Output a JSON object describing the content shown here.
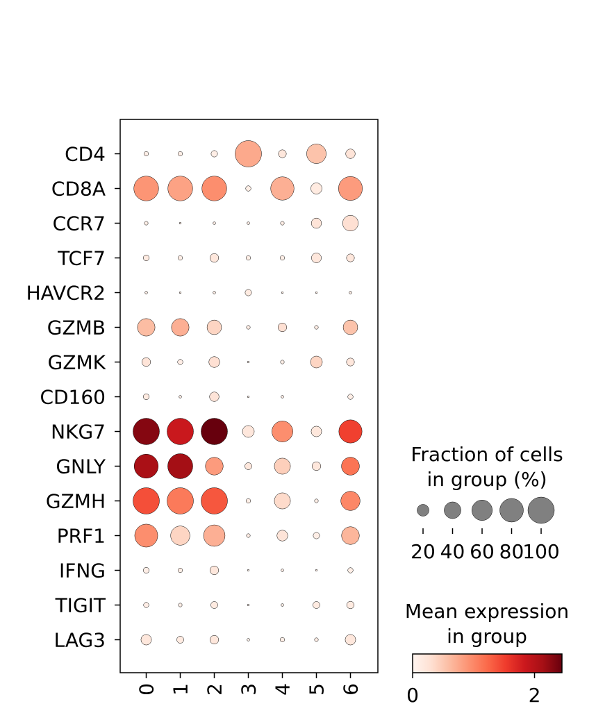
{
  "chart_data": {
    "type": "dotplot",
    "genes": [
      "CD4",
      "CD8A",
      "CCR7",
      "TCF7",
      "HAVCR2",
      "GZMB",
      "GZMK",
      "CD160",
      "NKG7",
      "GNLY",
      "GZMH",
      "PRF1",
      "IFNG",
      "TIGIT",
      "LAG3"
    ],
    "groups": [
      "0",
      "1",
      "2",
      "3",
      "4",
      "5",
      "6"
    ],
    "fraction_pct": [
      [
        3,
        3,
        6,
        100,
        9,
        55,
        13
      ],
      [
        88,
        88,
        88,
        4,
        78,
        18,
        82
      ],
      [
        2,
        0.5,
        1,
        1,
        2,
        15,
        35
      ],
      [
        5,
        3,
        11,
        3,
        3,
        14,
        9
      ],
      [
        1,
        0.5,
        1,
        6,
        0.5,
        0.5,
        1
      ],
      [
        44,
        44,
        30,
        2,
        11,
        2,
        30
      ],
      [
        11,
        4,
        17,
        0.5,
        2,
        20,
        9
      ],
      [
        5,
        1,
        13,
        0.5,
        1,
        0,
        4
      ],
      [
        100,
        100,
        100,
        20,
        63,
        16,
        77
      ],
      [
        83,
        90,
        45,
        7,
        37,
        11,
        46
      ],
      [
        100,
        100,
        100,
        3,
        37,
        2,
        53
      ],
      [
        76,
        53,
        66,
        2,
        17,
        6,
        45
      ],
      [
        5,
        3,
        11,
        0.5,
        1,
        0.5,
        4
      ],
      [
        4,
        2,
        7,
        0.5,
        1,
        7,
        8
      ],
      [
        16,
        7,
        11,
        1,
        3,
        2,
        16
      ]
    ],
    "mean_expression": [
      [
        0.1,
        0.1,
        0.1,
        0.75,
        0.2,
        0.55,
        0.25
      ],
      [
        0.9,
        0.8,
        0.95,
        0.1,
        0.7,
        0.15,
        0.85
      ],
      [
        0.1,
        0.1,
        0.1,
        0.1,
        0.1,
        0.25,
        0.3
      ],
      [
        0.15,
        0.1,
        0.2,
        0.1,
        0.1,
        0.2,
        0.2
      ],
      [
        0.1,
        0.1,
        0.1,
        0.15,
        0.1,
        0.1,
        0.1
      ],
      [
        0.6,
        0.7,
        0.4,
        0.1,
        0.3,
        0.1,
        0.55
      ],
      [
        0.25,
        0.1,
        0.3,
        0.05,
        0.1,
        0.4,
        0.2
      ],
      [
        0.15,
        0.1,
        0.25,
        0.05,
        0.1,
        0.0,
        0.1
      ],
      [
        2.3,
        1.85,
        2.45,
        0.2,
        0.95,
        0.2,
        1.5
      ],
      [
        2.1,
        2.15,
        0.85,
        0.2,
        0.45,
        0.2,
        1.15
      ],
      [
        1.4,
        1.1,
        1.35,
        0.1,
        0.35,
        0.1,
        1.0
      ],
      [
        0.95,
        0.4,
        0.7,
        0.1,
        0.25,
        0.1,
        0.65
      ],
      [
        0.1,
        0.1,
        0.2,
        0.05,
        0.1,
        0.1,
        0.1
      ],
      [
        0.1,
        0.1,
        0.15,
        0.05,
        0.1,
        0.15,
        0.15
      ],
      [
        0.2,
        0.15,
        0.2,
        0.05,
        0.1,
        0.1,
        0.2
      ]
    ],
    "size_legend": {
      "title_line1": "Fraction of cells",
      "title_line2": "in group (%)",
      "values": [
        "20",
        "40",
        "60",
        "80",
        "100"
      ]
    },
    "color_legend": {
      "title_line1": "Mean expression",
      "title_line2": "in group",
      "min_label": "0",
      "max_label": "2",
      "vmin": 0,
      "vmax": 2.45,
      "colormap": "Reds",
      "stops": [
        "#fff5f0",
        "#fee0d2",
        "#fcbba1",
        "#fc9272",
        "#fb6a4a",
        "#ef3b2c",
        "#cb181d",
        "#a50f15",
        "#67000d"
      ]
    }
  }
}
